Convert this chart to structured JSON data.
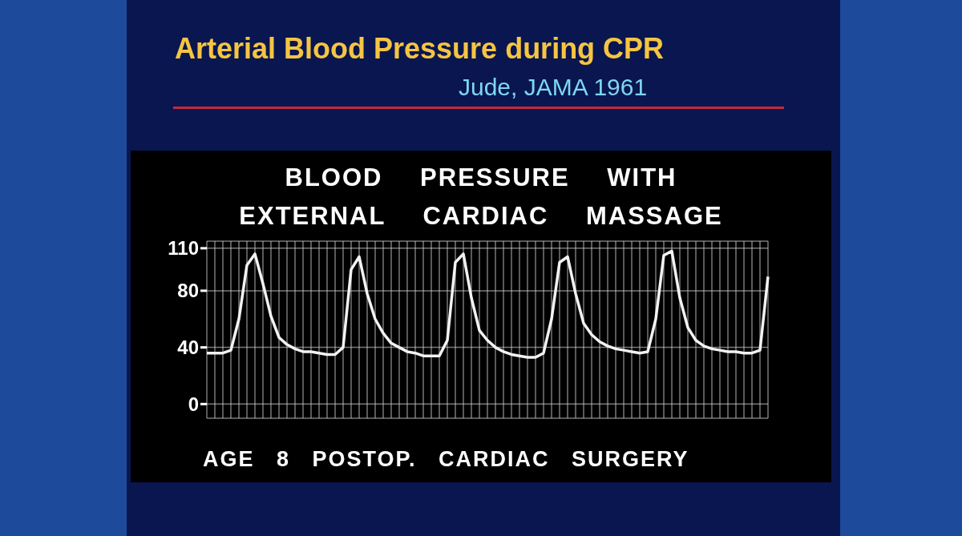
{
  "chart_data": {
    "type": "line",
    "title": "Arterial Blood Pressure during CPR",
    "subtitle": "Jude, JAMA 1961",
    "annotations": [
      "BLOOD PRESSURE WITH EXTERNAL CARDIAC MASSAGE",
      "AGE 8 POSTOP. CARDIAC SURGERY"
    ],
    "categories": [
      null,
      null,
      null,
      null,
      null,
      null,
      null,
      null,
      null,
      null,
      null,
      null,
      null,
      null,
      null,
      null,
      null,
      null,
      null,
      null,
      null,
      null,
      null,
      null,
      null,
      null,
      null,
      null,
      null,
      null,
      null,
      null,
      null,
      null,
      null,
      null,
      null,
      null,
      null,
      null,
      null,
      null,
      null,
      null,
      null,
      null,
      null,
      null,
      null,
      null,
      null,
      null,
      null,
      null,
      null,
      null,
      null,
      null,
      null,
      null,
      null,
      null,
      null,
      null,
      null,
      null,
      null,
      null,
      null,
      null,
      null
    ],
    "series": [
      {
        "color": "#f2f2f2",
        "values": [
          36,
          36,
          36,
          38,
          60,
          98,
          106,
          85,
          62,
          47,
          42,
          39,
          37,
          37,
          36,
          35,
          35,
          40,
          95,
          104,
          78,
          60,
          50,
          43,
          40,
          37,
          36,
          34,
          34,
          34,
          45,
          100,
          106,
          75,
          52,
          45,
          40,
          37,
          35,
          34,
          33,
          33,
          36,
          60,
          100,
          104,
          78,
          57,
          49,
          44,
          41,
          39,
          38,
          37,
          36,
          37,
          60,
          105,
          108,
          75,
          54,
          45,
          41,
          39,
          38,
          37,
          37,
          36,
          36,
          38,
          90
        ]
      }
    ],
    "ylim": [
      -10,
      115
    ],
    "yticks": [
      0,
      40,
      80,
      110
    ],
    "grid": true,
    "marker": "none",
    "line_style": "solid"
  }
}
